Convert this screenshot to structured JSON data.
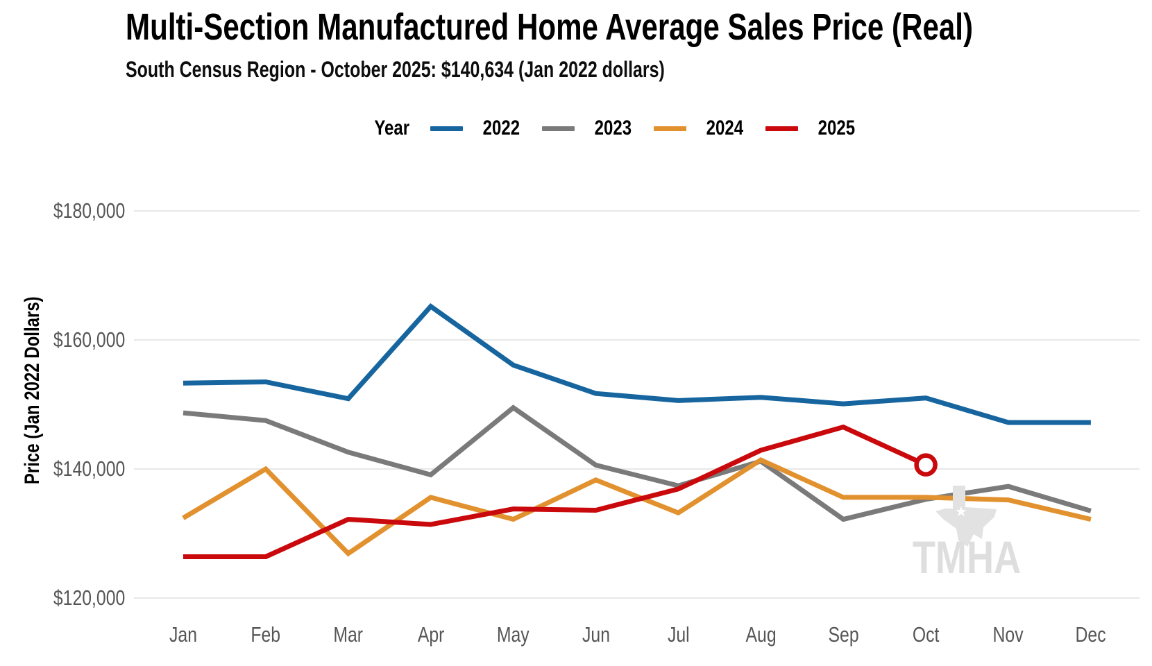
{
  "header": {
    "title": "Multi-Section Manufactured Home Average Sales Price (Real)",
    "subtitle": "South Census Region - October 2025: $140,634 (Jan 2022 dollars)"
  },
  "legend": {
    "title": "Year"
  },
  "watermark": {
    "text": "TMHA"
  },
  "colors": {
    "blue_2022": "#16659F",
    "gray_2023": "#7A7A7A",
    "orange_2024": "#E2912F",
    "red_2025": "#C9090C",
    "grid": "#E8E8E8",
    "axis_text": "#565656",
    "watermark_gray": "#DEDEDE"
  },
  "chart_data": {
    "type": "line",
    "title": "Multi-Section Manufactured Home Average Sales Price (Real)",
    "subtitle": "South Census Region - October 2025: $140,634 (Jan 2022 dollars)",
    "xlabel": "",
    "ylabel": "Price (Jan 2022 Dollars)",
    "legend_title": "Year",
    "legend_position": "top",
    "grid": "horizontal",
    "categories": [
      "Jan",
      "Feb",
      "Mar",
      "Apr",
      "May",
      "Jun",
      "Jul",
      "Aug",
      "Sep",
      "Oct",
      "Nov",
      "Dec"
    ],
    "y_ticks": [
      120000,
      140000,
      160000,
      180000
    ],
    "y_tick_labels": [
      "$120,000",
      "$140,000",
      "$160,000",
      "$180,000"
    ],
    "ylim": [
      118000,
      187000
    ],
    "series": [
      {
        "name": "2022",
        "color": "#16659F",
        "values": [
          153300,
          153500,
          150900,
          165200,
          156100,
          151700,
          150600,
          151100,
          150100,
          151000,
          147200,
          147200
        ]
      },
      {
        "name": "2023",
        "color": "#7A7A7A",
        "values": [
          148700,
          147500,
          142600,
          139100,
          149500,
          140600,
          137400,
          141200,
          132200,
          135300,
          137300,
          133500
        ]
      },
      {
        "name": "2024",
        "color": "#E2912F",
        "values": [
          132400,
          140000,
          126900,
          135600,
          132200,
          138300,
          133200,
          141400,
          135600,
          135600,
          135200,
          132200
        ]
      },
      {
        "name": "2025",
        "color": "#C9090C",
        "end_marker": true,
        "values": [
          126400,
          126400,
          132200,
          131400,
          133800,
          133600,
          136900,
          142900,
          146500,
          140634
        ]
      }
    ],
    "highlight_point": {
      "series": "2025",
      "month": "Oct",
      "value": 140634
    }
  }
}
